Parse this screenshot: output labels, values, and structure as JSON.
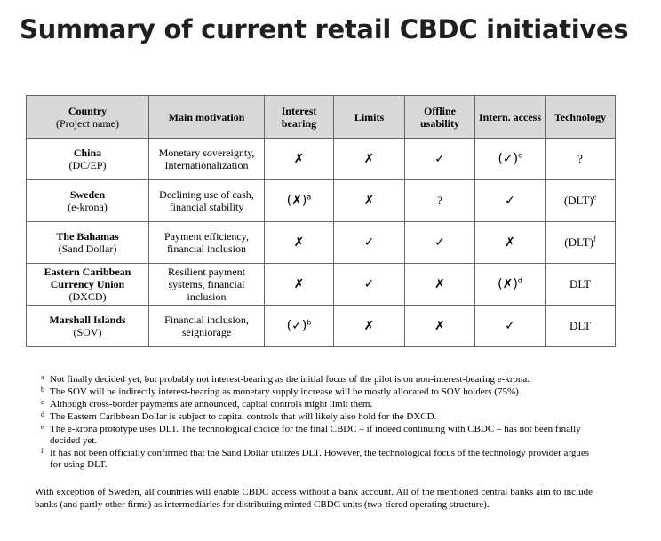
{
  "title": "Summary of current retail CBDC initiatives",
  "table": {
    "headers": {
      "country_line1": "Country",
      "country_line2": "(Project name)",
      "motivation": "Main motivation",
      "interest": "Interest bearing",
      "limits": "Limits",
      "offline": "Offline usability",
      "intern": "Intern. access",
      "technology": "Technology"
    },
    "rows": [
      {
        "country": "China",
        "project": "(DC/EP)",
        "motivation": "Monetary sovereignty, Internationalization",
        "interest": "✗",
        "interest_sup": "",
        "limits": "✗",
        "offline": "✓",
        "intern": "(✓)",
        "intern_sup": "c",
        "tech": "?",
        "tech_sup": ""
      },
      {
        "country": "Sweden",
        "project": "(e-krona)",
        "motivation": "Declining use of cash, financial stability",
        "interest": "(✗)",
        "interest_sup": "a",
        "limits": "✗",
        "offline": "?",
        "intern": "✓",
        "intern_sup": "",
        "tech": "(DLT)",
        "tech_sup": "e"
      },
      {
        "country": "The Bahamas",
        "project": "(Sand Dollar)",
        "motivation": "Payment efficiency, financial inclusion",
        "interest": "✗",
        "interest_sup": "",
        "limits": "✓",
        "offline": "✓",
        "intern": "✗",
        "intern_sup": "",
        "tech": "(DLT)",
        "tech_sup": "f"
      },
      {
        "country": "Eastern Caribbean Currency Union",
        "project": "(DXCD)",
        "motivation": "Resilient payment systems, financial inclusion",
        "interest": "✗",
        "interest_sup": "",
        "limits": "✓",
        "offline": "✗",
        "intern": "(✗)",
        "intern_sup": "d",
        "tech": "DLT",
        "tech_sup": ""
      },
      {
        "country": "Marshall Islands",
        "project": "(SOV)",
        "motivation": "Financial inclusion, seigniorage",
        "interest": "(✓)",
        "interest_sup": "b",
        "limits": "✗",
        "offline": "✗",
        "intern": "✓",
        "intern_sup": "",
        "tech": "DLT",
        "tech_sup": ""
      }
    ]
  },
  "footnotes": [
    {
      "mark": "a",
      "text": "Not finally decided yet, but probably not interest-bearing as the initial focus of the pilot is on non-interest-bearing e-krona."
    },
    {
      "mark": "b",
      "text": "The SOV will be indirectly interest-bearing as monetary supply increase will be mostly allocated to SOV holders (75%)."
    },
    {
      "mark": "c",
      "text": "Although cross-border payments are announced, capital controls might limit them."
    },
    {
      "mark": "d",
      "text": "The Eastern Caribbean Dollar is subject to capital controls that will likely also hold for the DXCD."
    },
    {
      "mark": "e",
      "text": "The e-krona prototype uses DLT. The technological choice for the final CBDC – if indeed continuing with CBDC – has not been finally decided yet."
    },
    {
      "mark": "f",
      "text": "It has not been officially confirmed that the Sand Dollar utilizes DLT. However, the technological focus of the technology provider argues for using DLT."
    }
  ],
  "closing": "With exception of Sweden, all countries will enable CBDC access without a bank account. All of the mentioned central banks aim to include banks (and partly other firms) as intermediaries for distributing minted CBDC units (two-tiered operating structure)."
}
